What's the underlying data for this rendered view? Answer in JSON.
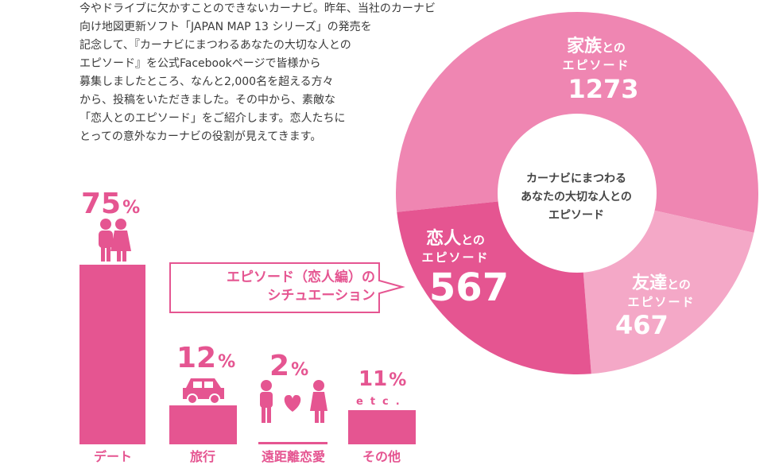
{
  "intro_lines": [
    "今やドライブに欠かすことのできないカーナビ。昨年、当社のカーナビ",
    "向け地図更新ソフト「JAPAN MAP 13 シリーズ」の発売を",
    "記念して、『カーナビにまつわるあなたの大切な人との",
    "エピソード』を公式Facebookページで皆様から",
    "募集しましたところ、なんと2,000名を超える方々",
    "から、投稿をいただきました。その中から、素敵な",
    "「恋人とのエピソード」をご紹介します。恋人たちに",
    "とっての意外なカーナビの役割が見えてきます。"
  ],
  "callout": {
    "line1": "エピソード（恋人編）の",
    "line2": "シチュエーション"
  },
  "colors": {
    "accent": "#e55591",
    "pink_mid": "#ef86b2",
    "pink_light": "#f4a8c7"
  },
  "chart_data": [
    {
      "type": "bar",
      "categories": [
        "デート",
        "旅行",
        "遠距離恋愛",
        "その他"
      ],
      "values": [
        75,
        12,
        2,
        11
      ],
      "value_labels": [
        "75",
        "12",
        "2",
        "11"
      ],
      "unit": "%",
      "extra_label": "etc.",
      "icons": [
        "couple-icon",
        "car-icon",
        "couple-heart-icon",
        ""
      ],
      "title": "",
      "xlabel": "",
      "ylabel": "",
      "ylim": [
        0,
        75
      ]
    },
    {
      "type": "pie",
      "center_label": [
        "カーナビにまつわる",
        "あなたの大切な人との",
        "エピソード"
      ],
      "slices": [
        {
          "main": "家族",
          "suffix": "との",
          "sub": "エピソード",
          "label": "家族との",
          "value": 1273,
          "value_label": "1273",
          "color": "#ef86b2"
        },
        {
          "main": "友達",
          "suffix": "との",
          "sub": "エピソード",
          "label": "友達との",
          "value": 467,
          "value_label": "467",
          "color": "#f4a8c7"
        },
        {
          "main": "恋人",
          "suffix": "との",
          "sub": "エピソード",
          "label": "恋人との",
          "value": 567,
          "value_label": "567",
          "color": "#e55591"
        }
      ]
    }
  ]
}
